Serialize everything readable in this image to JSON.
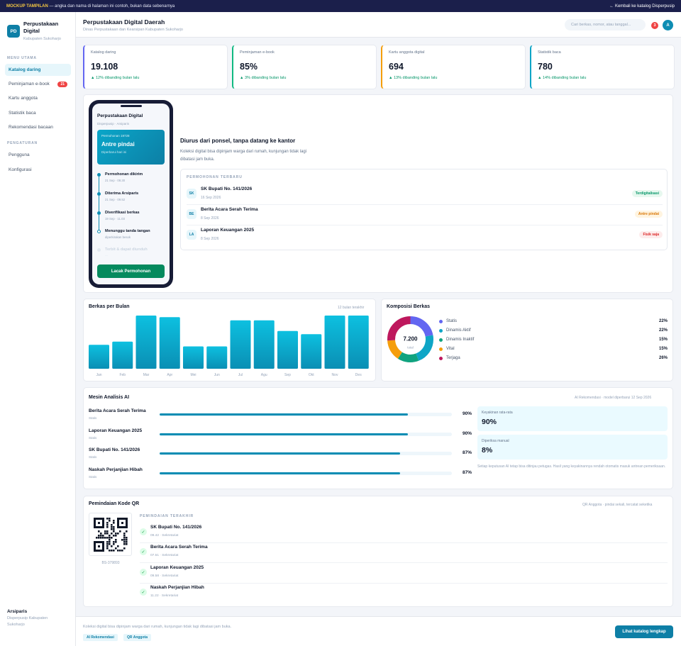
{
  "banner": {
    "tag": "MOCKUP TAMPILAN",
    "text": "— angka dan nama di halaman ini contoh, bukan data sebenarnya",
    "back": "← Kembali ke katalog Disperpusip"
  },
  "sidebar": {
    "logo": "PD",
    "app_name": "Perpustakaan Digital",
    "app_sub": "Kabupaten Sukoharjo",
    "section_main": "MENU UTAMA",
    "items": [
      {
        "label": "Katalog daring",
        "active": true
      },
      {
        "label": "Peminjaman e-book",
        "badge": "21"
      },
      {
        "label": "Kartu anggota"
      },
      {
        "label": "Statistik baca"
      },
      {
        "label": "Rekomendasi bacaan"
      }
    ],
    "section_settings": "PENGATURAN",
    "settings": [
      {
        "label": "Pengguna"
      },
      {
        "label": "Konfigurasi"
      }
    ],
    "user_name": "Arsiparis",
    "user_role": "Disperpusip Kabupaten Sukoharjo"
  },
  "header": {
    "title": "Perpustakaan Digital Daerah",
    "subtitle": "Dinas Perpustakaan dan Kearsipan Kabupaten Sukoharjo",
    "search_placeholder": "Cari berkas, nomor, atau tanggal...",
    "notif_count": "3",
    "avatar": "A"
  },
  "stats": [
    {
      "label": "Katalog daring",
      "value": "19.108",
      "delta": "▲ 12% dibanding bulan lalu",
      "accent": "#6366f1"
    },
    {
      "label": "Peminjaman e-book",
      "value": "85%",
      "delta": "▲ 3% dibanding bulan lalu",
      "accent": "#10b981"
    },
    {
      "label": "Kartu anggota digital",
      "value": "694",
      "delta": "▲ 13% dibanding bulan lalu",
      "accent": "#f59e0b"
    },
    {
      "label": "Statistik baca",
      "value": "780",
      "delta": "▲ 14% dibanding bulan lalu",
      "accent": "#0ea5c6"
    }
  ],
  "phone": {
    "title": "Perpustakaan Digital",
    "subtitle": "Disperpusip · Arsiparis",
    "request_no": "Permohonan 19728",
    "status": "Antre pindai",
    "updated": "Diperbarui hari ini",
    "timeline": [
      {
        "title": "Permohonan dikirim",
        "date": "21 Sep · 08.30",
        "state": "done"
      },
      {
        "title": "Diterima Arsiparis",
        "date": "21 Sep · 09.52",
        "state": "done"
      },
      {
        "title": "Diverifikasi berkas",
        "date": "19 Sep · 11.03",
        "state": "done"
      },
      {
        "title": "Menunggu tanda tangan",
        "date": "diperkirakan besok",
        "state": "current"
      },
      {
        "title": "Terbit & dapat diunduh",
        "date": "—",
        "state": "pending"
      }
    ],
    "button": "Lacak Permohonan"
  },
  "hero": {
    "title": "Diurus dari ponsel, tanpa datang ke kantor",
    "desc": "Koleksi digital bisa dipinjam warga dari rumah, kunjungan tidak lagi dibatasi jam buka.",
    "recent_header": "PERMOHONAN TERBARU",
    "recent": [
      {
        "code": "SK",
        "title": "SK Bupati No. 141/2026",
        "date": "16 Sep 2026",
        "status": "Terdigitalisasi",
        "status_color": "#059669",
        "status_bg": "#e7f8ef"
      },
      {
        "code": "BE",
        "title": "Berita Acara Serah Terima",
        "date": "8 Sep 2026",
        "status": "Antre pindai",
        "status_color": "#d97706",
        "status_bg": "#fff4e0"
      },
      {
        "code": "LA",
        "title": "Laporan Keuangan 2025",
        "date": "8 Sep 2026",
        "status": "Fisik saja",
        "status_color": "#dc2626",
        "status_bg": "#fdecec"
      }
    ]
  },
  "bar_panel": {
    "title": "Berkas per Bulan",
    "note": "12 bulan terakhir"
  },
  "comp_panel": {
    "title": "Komposisi Berkas",
    "total": "7.200",
    "total_label": "total"
  },
  "chart_data": [
    {
      "type": "bar",
      "categories": [
        "Jan",
        "Feb",
        "Mar",
        "Apr",
        "Mei",
        "Jun",
        "Jul",
        "Agu",
        "Sep",
        "Okt",
        "Nov",
        "Des"
      ],
      "values": [
        45,
        51,
        100,
        97,
        42,
        42,
        91,
        91,
        71,
        65,
        100,
        100
      ],
      "title": "Berkas per Bulan",
      "ylim": [
        0,
        100
      ]
    },
    {
      "type": "pie",
      "categories": [
        "Statis",
        "Dinamis Aktif",
        "Dinamis Inaktif",
        "Vital",
        "Terjaga"
      ],
      "values": [
        22,
        22,
        15,
        15,
        26
      ],
      "colors": [
        "#6366f1",
        "#0ea5c6",
        "#10a37f",
        "#f59e0b",
        "#be185d"
      ],
      "title": "Komposisi Berkas"
    }
  ],
  "ai": {
    "title": "Mesin Analisis AI",
    "note": "AI Rekomendasi · model diperbarui 12 Sep 2026",
    "rows": [
      {
        "title": "Berita Acara Serah Terima",
        "sub": "Statis",
        "pct": 90,
        "pct_label": "90%"
      },
      {
        "title": "Laporan Keuangan 2025",
        "sub": "Statis",
        "pct": 90,
        "pct_label": "90%"
      },
      {
        "title": "SK Bupati No. 141/2026",
        "sub": "Statis",
        "pct": 87,
        "pct_label": "87%"
      },
      {
        "title": "Naskah Perjanjian Hibah",
        "sub": "Statis",
        "pct": 87,
        "pct_label": "87%"
      }
    ],
    "avg_label": "Keyakinan rata-rata",
    "avg_value": "90%",
    "manual_label": "Diperiksa manual",
    "manual_value": "8%",
    "footnote": "Setiap keputusan AI tetap bisa ditinjau petugas. Hasil yang keyakinannya rendah otomatis masuk antrean pemeriksaan."
  },
  "qr": {
    "title": "Pemindaian Kode QR",
    "note": "QR Anggota · pindai sekali, tercatat seketika",
    "code": "BS-379893",
    "header": "PEMINDAIAN TERAKHIR",
    "scans": [
      {
        "title": "SK Bupati No. 141/2026",
        "time": "09.42 · Sekretariat"
      },
      {
        "title": "Berita Acara Serah Terima",
        "time": "07.51 · Sekretariat"
      },
      {
        "title": "Laporan Keuangan 2025",
        "time": "09.58 · Sekretariat"
      },
      {
        "title": "Naskah Perjanjian Hibah",
        "time": "11.22 · Sekretariat"
      }
    ]
  },
  "footer": {
    "text": "Koleksi digital bisa dipinjam warga dari rumah, kunjungan tidak lagi dibatasi jam buka.",
    "chip1": "AI Rekomendasi",
    "chip2": "QR Anggota",
    "cta": "Lihat katalog lengkap"
  }
}
